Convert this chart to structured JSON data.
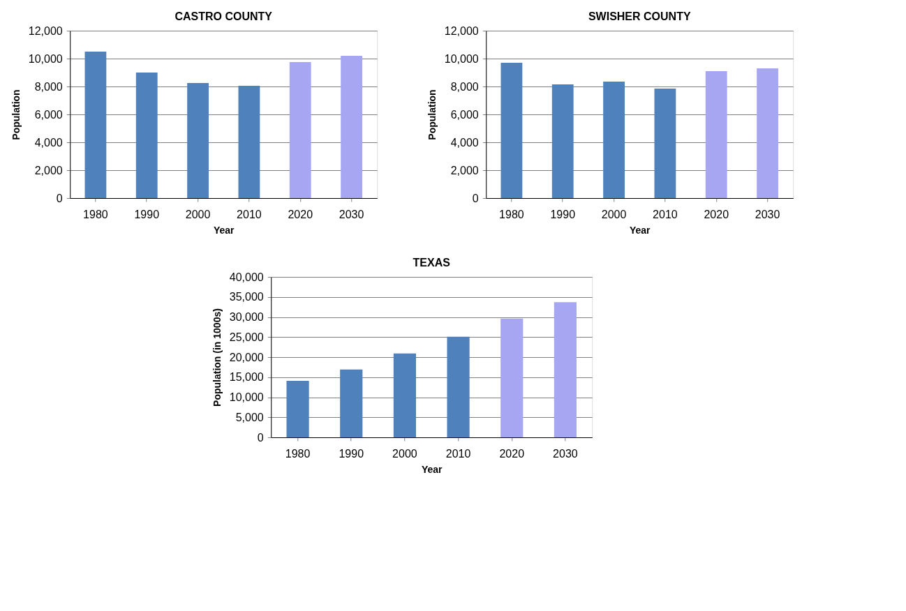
{
  "chart_data": [
    {
      "type": "bar",
      "title": "CASTRO COUNTY",
      "xlabel": "Year",
      "ylabel": "Population",
      "categories": [
        "1980",
        "1990",
        "2000",
        "2010",
        "2020",
        "2030"
      ],
      "values": [
        10500,
        9000,
        8250,
        8050,
        9750,
        10200
      ],
      "colors": [
        "#4f81bd",
        "#4f81bd",
        "#4f81bd",
        "#4f81bd",
        "#a6a6f2",
        "#a6a6f2"
      ],
      "ylim": [
        0,
        12000
      ],
      "yticks": [
        0,
        {
          "value": 2000,
          "label": "2,000"
        },
        {
          "value": 4000,
          "label": "4,000"
        },
        {
          "value": 6000,
          "label": "6,000"
        },
        {
          "value": 8000,
          "label": "8,000"
        },
        {
          "value": 10000,
          "label": "10,000"
        },
        {
          "value": 12000,
          "label": "12,000"
        }
      ],
      "grid": "y"
    },
    {
      "type": "bar",
      "title": "SWISHER COUNTY",
      "xlabel": "Year",
      "ylabel": "Population",
      "categories": [
        "1980",
        "1990",
        "2000",
        "2010",
        "2020",
        "2030"
      ],
      "values": [
        9700,
        8150,
        8350,
        7850,
        9100,
        9300
      ],
      "colors": [
        "#4f81bd",
        "#4f81bd",
        "#4f81bd",
        "#4f81bd",
        "#a6a6f2",
        "#a6a6f2"
      ],
      "ylim": [
        0,
        12000
      ],
      "yticks": [
        0,
        {
          "value": 2000,
          "label": "2,000"
        },
        {
          "value": 4000,
          "label": "4,000"
        },
        {
          "value": 6000,
          "label": "6,000"
        },
        {
          "value": 8000,
          "label": "8,000"
        },
        {
          "value": 10000,
          "label": "10,000"
        },
        {
          "value": 12000,
          "label": "12,000"
        }
      ],
      "grid": "y"
    },
    {
      "type": "bar",
      "title": "TEXAS",
      "xlabel": "Year",
      "ylabel": "Population (in 1000s)",
      "categories": [
        "1980",
        "1990",
        "2000",
        "2010",
        "2020",
        "2030"
      ],
      "values": [
        14100,
        16900,
        20900,
        25100,
        29600,
        33700
      ],
      "colors": [
        "#4f81bd",
        "#4f81bd",
        "#4f81bd",
        "#4f81bd",
        "#a6a6f2",
        "#a6a6f2"
      ],
      "ylim": [
        0,
        40000
      ],
      "yticks": [
        0,
        {
          "value": 5000,
          "label": "5,000"
        },
        {
          "value": 10000,
          "label": "10,000"
        },
        {
          "value": 15000,
          "label": "15,000"
        },
        {
          "value": 20000,
          "label": "20,000"
        },
        {
          "value": 25000,
          "label": "25,000"
        },
        {
          "value": 30000,
          "label": "30,000"
        },
        {
          "value": 35000,
          "label": "35,000"
        },
        {
          "value": 40000,
          "label": "40,000"
        }
      ],
      "grid": "y"
    }
  ]
}
